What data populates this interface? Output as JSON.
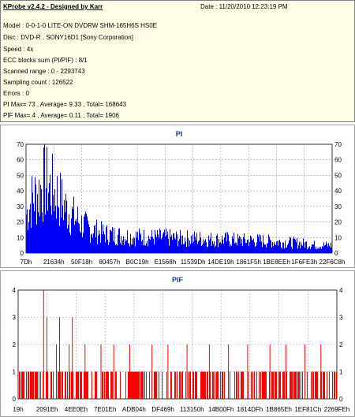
{
  "header": {
    "title": "KProbe v2.4.2 - Designed by Karr",
    "date": "Date : 11/20/2010 12:23:19 PM"
  },
  "info_lines": [
    "Model : 0-0-1-0 LITE-ON DVDRW SHM-165H6S HS0E",
    "Disc : DVD-R , SONY16D1 [Sony Corporation]",
    "Speed : 4x",
    "ECC blocks sum (PI/PIF) : 8/1",
    "Scanned range : 0 - 2293743",
    "Sampling count : 126522",
    "Errors : 0",
    "PI Max= 73 , Average= 9.33 , Total= 168643",
    "PIF Max= 4 , Average= 0.11 , Total= 1906"
  ],
  "colors": {
    "pi": "#0000ff",
    "pif": "#ff0000",
    "title": "#1a3a9c",
    "info_bg": "#ffffe8"
  },
  "chart_data": [
    {
      "type": "bar",
      "title": "PI",
      "ylim": [
        0,
        70
      ],
      "yticks": [
        0,
        10,
        20,
        30,
        40,
        50,
        60,
        70
      ],
      "xtick_labels": [
        "7Dh",
        "21634h",
        "50F18h",
        "80457h",
        "B0C19h",
        "E1568h",
        "11539Dh",
        "14DE19h",
        "1861F5h",
        "1BE8EEh",
        "1F6FE3h",
        "22F6C8h"
      ],
      "grid": true,
      "profile": [
        [
          0,
          40
        ],
        [
          2,
          56
        ],
        [
          4,
          62
        ],
        [
          6,
          73
        ],
        [
          8,
          66
        ],
        [
          10,
          60
        ],
        [
          12,
          50
        ],
        [
          14,
          42
        ],
        [
          16,
          36
        ],
        [
          18,
          30
        ],
        [
          20,
          26
        ],
        [
          22,
          23
        ],
        [
          24,
          21
        ],
        [
          27,
          19
        ],
        [
          30,
          18
        ],
        [
          35,
          17
        ],
        [
          40,
          16
        ],
        [
          45,
          16
        ],
        [
          50,
          15
        ],
        [
          55,
          15
        ],
        [
          60,
          14
        ],
        [
          65,
          14
        ],
        [
          70,
          13
        ],
        [
          75,
          13
        ],
        [
          80,
          12
        ],
        [
          85,
          11
        ],
        [
          90,
          10
        ],
        [
          95,
          8
        ],
        [
          100,
          8
        ]
      ]
    },
    {
      "type": "bar",
      "title": "PIF",
      "ylim": [
        0,
        4
      ],
      "yticks": [
        0,
        1,
        2,
        3,
        4
      ],
      "xtick_labels": [
        "19h",
        "2091Eh",
        "4EE0Eh",
        "7E01Eh",
        "ADB04h",
        "DF469h",
        "113150h",
        "14B00Fh",
        "1814DFh",
        "1B865Eh",
        "1EF81Ch",
        "2269FEh"
      ],
      "grid": true,
      "spikes": [
        [
          8,
          4
        ],
        [
          9,
          3
        ],
        [
          12,
          2
        ],
        [
          13,
          3
        ],
        [
          16,
          2
        ],
        [
          17,
          3
        ],
        [
          21,
          2
        ],
        [
          26,
          2
        ],
        [
          30,
          2
        ],
        [
          35,
          2
        ],
        [
          42,
          2
        ],
        [
          47,
          2
        ],
        [
          53,
          2
        ],
        [
          60,
          2
        ],
        [
          66,
          2
        ],
        [
          72,
          2
        ],
        [
          79,
          2
        ],
        [
          84,
          2
        ],
        [
          90,
          2
        ],
        [
          95,
          2
        ]
      ]
    }
  ]
}
